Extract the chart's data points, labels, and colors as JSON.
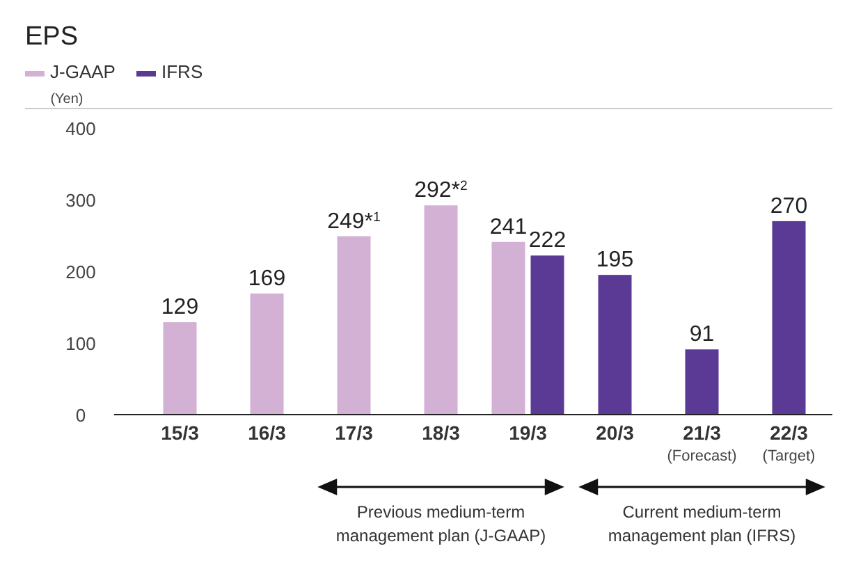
{
  "chart_data": {
    "type": "bar",
    "title": "EPS",
    "ylabel": "(Yen)",
    "categories": [
      "15/3",
      "16/3",
      "17/3",
      "18/3",
      "19/3",
      "20/3",
      "21/3 (Forecast)",
      "22/3 (Target)"
    ],
    "series": [
      {
        "name": "J-GAAP",
        "color": "#d3b1d5",
        "values": [
          129,
          169,
          249,
          292,
          241,
          null,
          null,
          null
        ],
        "value_labels": [
          "129",
          "169",
          "249*$^{1}$",
          "292*$^{2}$",
          "241",
          null,
          null,
          null
        ]
      },
      {
        "name": "IFRS",
        "color": "#5b3a96",
        "values": [
          null,
          null,
          null,
          null,
          222,
          195,
          91,
          270
        ],
        "value_labels": [
          null,
          null,
          null,
          null,
          "222",
          "195",
          "91",
          "270"
        ]
      }
    ],
    "ylim": [
      0,
      400
    ],
    "yticks": [
      0,
      100,
      200,
      300,
      400
    ],
    "legend": "top left",
    "annotations": [
      "Previous medium-term management plan (J-GAAP)",
      "Current medium-term management plan (IFRS)"
    ]
  }
}
